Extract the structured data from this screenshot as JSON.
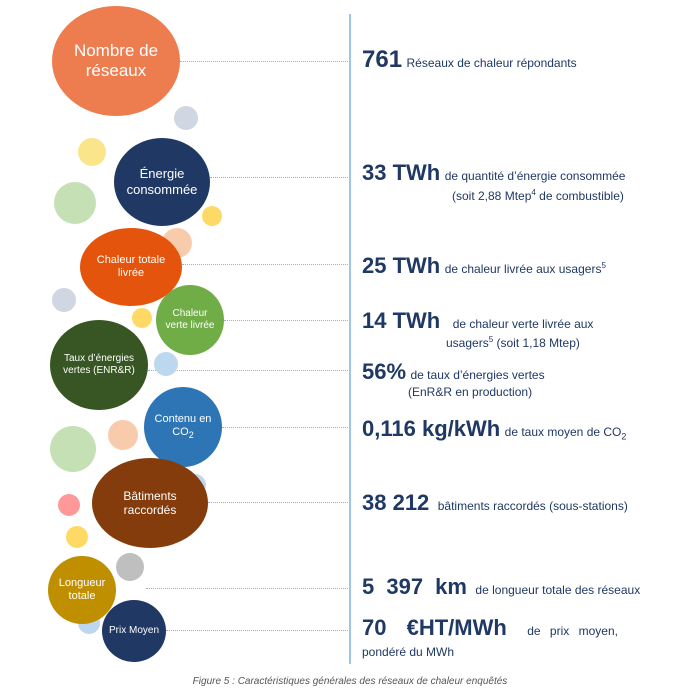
{
  "bubbles": {
    "nombre": "Nombre de réseaux",
    "energie": "Énergie consommée",
    "chaleur_totale": "Chaleur totale livrée",
    "chaleur_verte": "Chaleur verte livrée",
    "taux": "Taux d’énergies vertes (ENR&R)",
    "contenu_a": "Contenu en CO",
    "contenu_sub": "2",
    "batiments": "Bâtiments raccordés",
    "longueur": "Longueur totale",
    "prix": "Prix Moyen"
  },
  "stats": {
    "s1": {
      "value": "761",
      "text": "Réseaux de chaleur répondants"
    },
    "s2": {
      "value": "33 TWh",
      "text": "de quantité d’énergie consommée",
      "line2a": "(soit 2,88 Mtep",
      "sup": "4",
      "line2b": " de combustible)"
    },
    "s3": {
      "value": "25 TWh",
      "text": "de chaleur livrée aux usagers",
      "sup": "5"
    },
    "s4": {
      "value": "14 TWh",
      "text": "de chaleur verte livrée aux",
      "line2a": "usagers",
      "sup": "5",
      "line2b": " (soit 1,18 Mtep)"
    },
    "s5": {
      "value": "56%",
      "text": "de taux d’énergies vertes",
      "line2": "(EnR&R en production)"
    },
    "s6": {
      "value": "0,116 kg/kWh",
      "text": "de taux moyen de CO",
      "sub": "2"
    },
    "s7": {
      "value": "38 212",
      "text": "bâtiments raccordés (sous-stations)"
    },
    "s8": {
      "value": "5 397 km",
      "text": "de longueur totale des réseaux"
    },
    "s9": {
      "value": "70 €HT/MWh",
      "text": "de prix moyen,",
      "line2": "pondéré du MWh"
    }
  },
  "caption": "Figure 5 : Caractéristiques générales des réseaux de chaleur enquêtés",
  "colors": {
    "nombre": "#ed7d4f",
    "energie": "#1f3864",
    "chaleur_totale": "#e5540c",
    "chaleur_verte": "#70ad47",
    "taux": "#375623",
    "contenu": "#2e75b6",
    "batiments": "#843c0c",
    "longueur": "#bf8f00",
    "prix": "#203864",
    "accent_line": "#9dc3e6",
    "text": "#1f3864"
  }
}
